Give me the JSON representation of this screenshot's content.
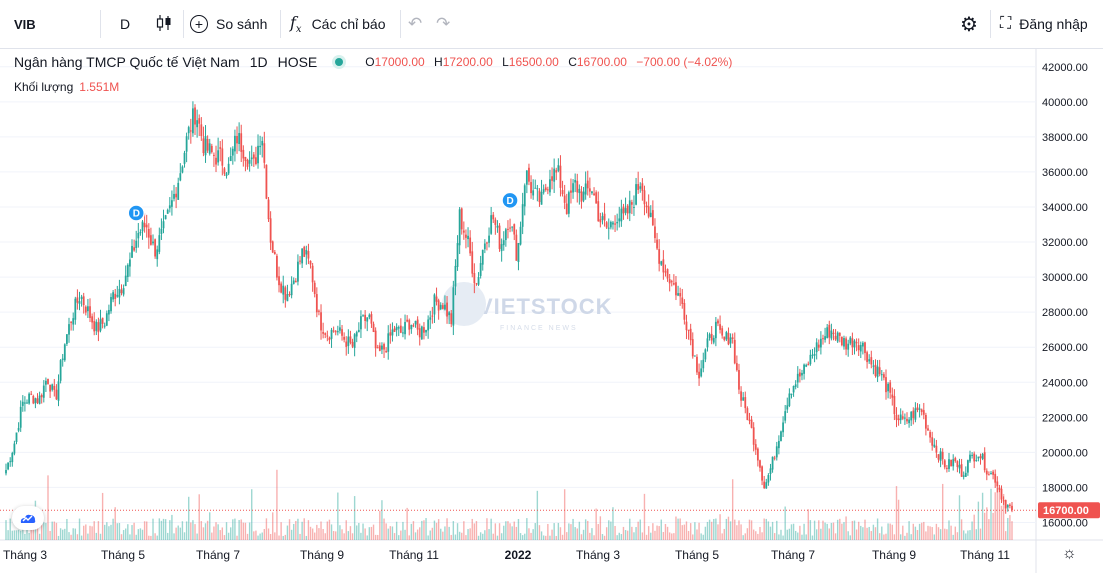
{
  "toolbar": {
    "symbol": "VIB",
    "interval": "D",
    "compare_label": "So sánh",
    "indicators_label": "Các chỉ báo",
    "login_label": "Đăng nhập"
  },
  "legend": {
    "name": "Ngân hàng TMCP Quốc tế Việt Nam",
    "timeframe": "1D",
    "exchange": "HOSE",
    "open_key": "O",
    "open": "17000.00",
    "high_key": "H",
    "high": "17200.00",
    "low_key": "L",
    "low": "16500.00",
    "close_key": "C",
    "close": "16700.00",
    "change": "−700.00 (−4.02%)",
    "volume_label": "Khối lượng",
    "volume": "1.551M"
  },
  "colors": {
    "up": "#26a69a",
    "down": "#ef5350",
    "grid": "#f0f3fa",
    "text": "#131722"
  },
  "watermark": {
    "text": "VIETSTOCK",
    "subtext": "FINANCE NEWS"
  },
  "chart_data": {
    "type": "candlestick",
    "ylim": [
      15000,
      42500
    ],
    "y_ticks": [
      "42000.00",
      "40000.00",
      "38000.00",
      "36000.00",
      "34000.00",
      "32000.00",
      "30000.00",
      "28000.00",
      "26000.00",
      "24000.00",
      "22000.00",
      "20000.00",
      "18000.00",
      "16000.00"
    ],
    "x_ticks": [
      "Tháng 3",
      "Tháng 5",
      "Tháng 7",
      "Tháng 9",
      "Tháng 11",
      "2022",
      "Tháng 3",
      "Tháng 5",
      "Tháng 7",
      "Tháng 9",
      "Tháng 11"
    ],
    "last_price_label": "16700.00",
    "last_price": 16700,
    "dividend_markers": [
      {
        "label": "D",
        "date_index": 62
      },
      {
        "label": "D",
        "date_index": 240
      }
    ],
    "close_path": [
      19000,
      20500,
      22800,
      23200,
      23000,
      24300,
      23000,
      26000,
      27800,
      29000,
      28000,
      27000,
      27500,
      29000,
      29500,
      30800,
      32500,
      33000,
      31500,
      32500,
      34000,
      35800,
      38000,
      39500,
      37500,
      37000,
      36800,
      36200,
      38000,
      37200,
      36200,
      38500,
      32500,
      30000,
      29000,
      30000,
      31500,
      30500,
      27500,
      26800,
      27000,
      26500,
      26000,
      27300,
      27800,
      25500,
      26000,
      27000,
      26800,
      27500,
      26800,
      27300,
      28600,
      28500,
      27500,
      33500,
      32000,
      29500,
      32000,
      33500,
      31800,
      33500,
      31200,
      36000,
      34700,
      34300,
      36000,
      35800,
      34000,
      35300,
      34600,
      35200,
      33300,
      32700,
      33600,
      33300,
      34300,
      35600,
      33500,
      31500,
      30300,
      29500,
      28500,
      26500,
      24500,
      26000,
      27200,
      26300,
      26800,
      23300,
      22000,
      20200,
      18000,
      19500,
      21500,
      23500,
      24200,
      24800,
      25800,
      26500,
      27000,
      26500,
      26200,
      26500,
      26000,
      25000,
      24500,
      23500,
      22000,
      21700,
      22200,
      22500,
      21000,
      20000,
      19200,
      19500,
      18800,
      19700,
      20000,
      19000,
      18500,
      17200,
      16700
    ],
    "volume_note": "daily volume bars, peaks near 1-2 million"
  }
}
